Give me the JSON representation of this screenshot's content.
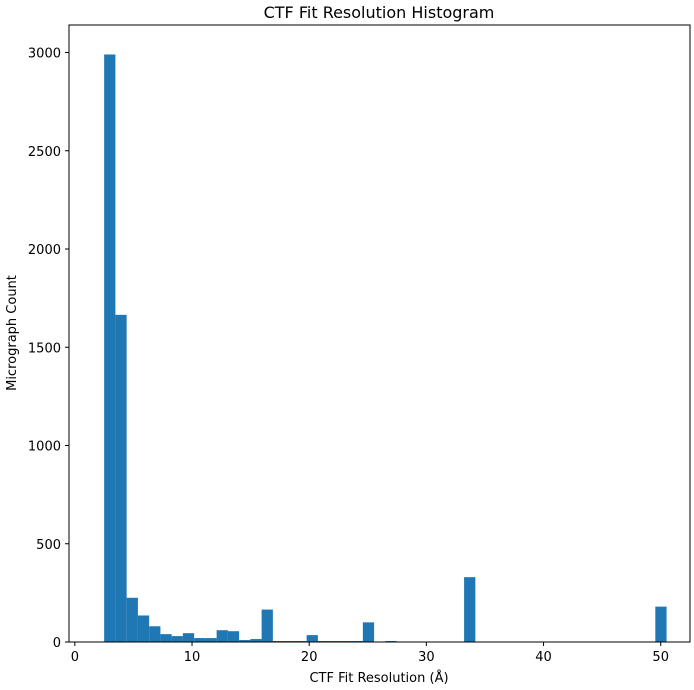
{
  "chart_data": {
    "type": "bar",
    "title": "CTF Fit Resolution Histogram",
    "xlabel": "CTF Fit Resolution (Å)",
    "ylabel": "Micrograph Count",
    "xlim": [
      -0.5,
      52.5
    ],
    "ylim": [
      0,
      3140
    ],
    "xticks": [
      0,
      10,
      20,
      30,
      40,
      50
    ],
    "yticks": [
      0,
      500,
      1000,
      1500,
      2000,
      2500,
      3000
    ],
    "bar_color": "#1f77b4",
    "bin_edges": [
      2.5,
      3.46,
      4.42,
      5.38,
      6.34,
      7.3,
      8.26,
      9.22,
      10.18,
      11.14,
      12.1,
      13.06,
      14.02,
      14.98,
      15.94,
      16.9,
      17.86,
      18.82,
      19.78,
      20.74,
      21.7,
      22.66,
      23.62,
      24.58,
      25.54,
      26.5,
      27.46,
      28.42,
      29.38,
      30.34,
      31.3,
      32.26,
      33.22,
      34.18,
      35.14,
      36.1,
      37.06,
      38.02,
      38.98,
      39.94,
      40.9,
      41.86,
      42.82,
      43.78,
      44.74,
      45.7,
      46.66,
      47.62,
      48.58,
      49.54,
      50.5
    ],
    "counts": [
      2990,
      1665,
      225,
      135,
      80,
      40,
      30,
      45,
      20,
      20,
      60,
      55,
      10,
      15,
      165,
      5,
      5,
      5,
      35,
      5,
      5,
      5,
      5,
      100,
      0,
      5,
      0,
      0,
      0,
      0,
      0,
      0,
      330,
      0,
      0,
      0,
      0,
      0,
      0,
      0,
      0,
      0,
      0,
      0,
      0,
      0,
      0,
      0,
      0,
      180
    ]
  }
}
